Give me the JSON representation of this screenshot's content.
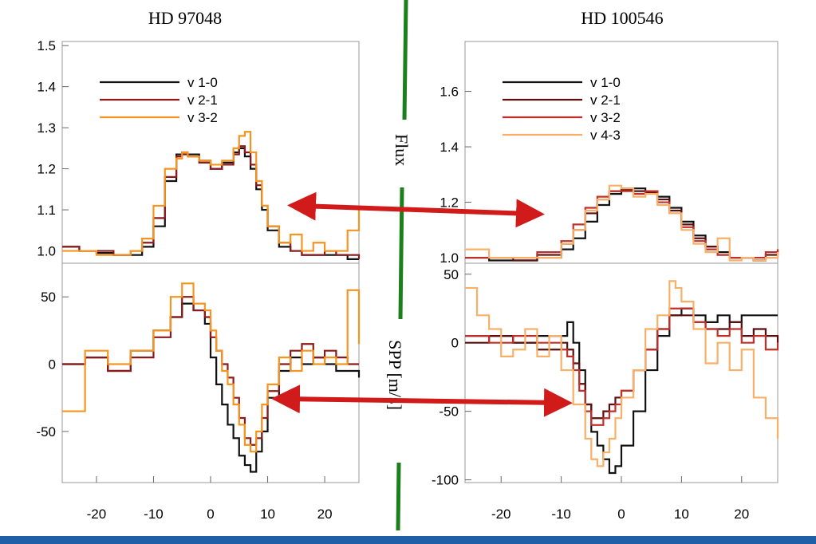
{
  "chart_data": [
    {
      "type": "line",
      "title": "HD 97048",
      "xlim": [
        -26,
        26
      ],
      "xticks": [
        -20,
        -10,
        0,
        10,
        20
      ],
      "panels": [
        {
          "id": "flux",
          "ylim": [
            0.97,
            1.51
          ],
          "yticks": [
            1.0,
            1.1,
            1.2,
            1.3,
            1.4,
            1.5
          ],
          "ytick_labels": [
            "1.0",
            "1.1",
            "1.2",
            "1.3",
            "1.4",
            "1.5"
          ],
          "series": [
            {
              "name": "v 1-0",
              "color": "#111111",
              "x": [
                -26,
                -23,
                -20,
                -17,
                -14,
                -12,
                -10,
                -8,
                -6,
                -5,
                -4,
                -2,
                0,
                2,
                4,
                5,
                6,
                7,
                8,
                9,
                10,
                12,
                14,
                16,
                18,
                20,
                22,
                24,
                26
              ],
              "y": [
                1.01,
                1.0,
                0.995,
                0.99,
                0.99,
                1.01,
                1.06,
                1.17,
                1.235,
                1.24,
                1.235,
                1.22,
                1.2,
                1.215,
                1.24,
                1.25,
                1.23,
                1.2,
                1.15,
                1.1,
                1.05,
                1.01,
                1.0,
                0.99,
                0.99,
                0.99,
                0.99,
                0.98,
                0.98
              ]
            },
            {
              "name": "v 2-1",
              "color": "#8b1a1a",
              "x": [
                -26,
                -23,
                -20,
                -17,
                -14,
                -12,
                -10,
                -8,
                -6,
                -5,
                -4,
                -2,
                0,
                2,
                4,
                5,
                6,
                7,
                8,
                9,
                10,
                12,
                14,
                16,
                18,
                20,
                22,
                24,
                26
              ],
              "y": [
                1.01,
                1.0,
                1.0,
                0.99,
                1.0,
                1.02,
                1.08,
                1.18,
                1.23,
                1.235,
                1.23,
                1.215,
                1.2,
                1.21,
                1.235,
                1.255,
                1.24,
                1.21,
                1.16,
                1.11,
                1.06,
                1.02,
                1.0,
                0.99,
                0.99,
                1.0,
                0.99,
                0.99,
                0.98
              ]
            },
            {
              "name": "v 3-2",
              "color": "#f5951f",
              "x": [
                -26,
                -23,
                -20,
                -17,
                -14,
                -12,
                -10,
                -8,
                -6,
                -5,
                -4,
                -2,
                0,
                2,
                4,
                5,
                6,
                7,
                8,
                9,
                10,
                12,
                14,
                16,
                18,
                20,
                22,
                24,
                26
              ],
              "y": [
                1.0,
                1.0,
                0.99,
                0.99,
                1.0,
                1.03,
                1.11,
                1.2,
                1.225,
                1.24,
                1.23,
                1.22,
                1.21,
                1.22,
                1.25,
                1.28,
                1.29,
                1.24,
                1.17,
                1.11,
                1.06,
                1.02,
                1.04,
                1.0,
                1.02,
                1.0,
                1.0,
                1.05,
                1.1
              ]
            }
          ]
        },
        {
          "id": "spp",
          "ylim": [
            -88,
            75
          ],
          "yticks": [
            -50,
            0,
            50
          ],
          "ytick_labels": [
            "-50",
            "0",
            "50"
          ],
          "series": [
            {
              "name": "v 1-0",
              "color": "#111111",
              "x": [
                -26,
                -22,
                -18,
                -14,
                -10,
                -7,
                -5,
                -3,
                -1,
                0,
                1,
                2,
                3,
                4,
                5,
                6,
                7,
                8,
                9,
                10,
                12,
                14,
                16,
                18,
                20,
                22,
                24,
                26
              ],
              "y": [
                0,
                5,
                -5,
                10,
                25,
                35,
                45,
                40,
                30,
                5,
                -15,
                -30,
                -45,
                -55,
                -68,
                -75,
                -80,
                -65,
                -50,
                -25,
                -5,
                5,
                0,
                5,
                0,
                -5,
                -5,
                -10
              ]
            },
            {
              "name": "v 2-1",
              "color": "#8b1a1a",
              "x": [
                -26,
                -22,
                -18,
                -14,
                -10,
                -7,
                -5,
                -3,
                -1,
                0,
                1,
                2,
                3,
                4,
                5,
                6,
                7,
                8,
                9,
                10,
                12,
                14,
                16,
                18,
                20,
                22,
                24,
                26
              ],
              "y": [
                0,
                5,
                -5,
                5,
                20,
                35,
                50,
                40,
                35,
                20,
                10,
                0,
                -10,
                -25,
                -40,
                -55,
                -60,
                -55,
                -40,
                -20,
                0,
                10,
                15,
                5,
                10,
                5,
                0,
                0
              ]
            },
            {
              "name": "v 3-2",
              "color": "#f5951f",
              "x": [
                -26,
                -22,
                -18,
                -14,
                -10,
                -7,
                -5,
                -3,
                -1,
                0,
                1,
                2,
                3,
                4,
                5,
                6,
                7,
                8,
                9,
                10,
                12,
                14,
                16,
                18,
                20,
                22,
                24,
                26
              ],
              "y": [
                -35,
                10,
                0,
                10,
                25,
                50,
                60,
                45,
                40,
                25,
                10,
                -5,
                -15,
                -30,
                -45,
                -60,
                -65,
                -50,
                -30,
                -15,
                5,
                -5,
                10,
                0,
                5,
                0,
                55,
                15
              ]
            }
          ]
        }
      ]
    },
    {
      "type": "line",
      "title": "HD 100546",
      "xlim": [
        -26,
        26
      ],
      "xticks": [
        -20,
        -10,
        0,
        10,
        20
      ],
      "panels": [
        {
          "id": "flux",
          "ylim": [
            0.98,
            1.78
          ],
          "yticks": [
            1.0,
            1.2,
            1.4,
            1.6
          ],
          "ytick_labels": [
            "1.0",
            "1.2",
            "1.4",
            "1.6"
          ],
          "series": [
            {
              "name": "v 1-0",
              "color": "#111111",
              "x": [
                -26,
                -22,
                -18,
                -14,
                -10,
                -8,
                -6,
                -4,
                -2,
                0,
                2,
                4,
                6,
                8,
                10,
                12,
                14,
                16,
                18,
                20,
                22,
                24,
                26
              ],
              "y": [
                1.0,
                0.99,
                0.99,
                1.0,
                1.03,
                1.07,
                1.13,
                1.19,
                1.23,
                1.25,
                1.25,
                1.24,
                1.22,
                1.18,
                1.13,
                1.08,
                1.04,
                1.02,
                1.0,
                1.0,
                0.99,
                1.0,
                1.0
              ]
            },
            {
              "name": "v 2-1",
              "color": "#5a0f0f",
              "x": [
                -26,
                -22,
                -18,
                -14,
                -10,
                -8,
                -6,
                -4,
                -2,
                0,
                2,
                4,
                6,
                8,
                10,
                12,
                14,
                16,
                18,
                20,
                22,
                24,
                26
              ],
              "y": [
                1.0,
                1.0,
                0.99,
                1.01,
                1.05,
                1.1,
                1.16,
                1.21,
                1.24,
                1.245,
                1.24,
                1.235,
                1.21,
                1.17,
                1.12,
                1.07,
                1.04,
                1.01,
                1.0,
                1.0,
                0.99,
                1.01,
                1.03
              ]
            },
            {
              "name": "v 3-2",
              "color": "#c0302a",
              "x": [
                -26,
                -22,
                -18,
                -14,
                -10,
                -8,
                -6,
                -4,
                -2,
                0,
                2,
                4,
                6,
                8,
                10,
                12,
                14,
                16,
                18,
                20,
                22,
                24,
                26
              ],
              "y": [
                1.0,
                1.0,
                1.0,
                1.02,
                1.06,
                1.12,
                1.18,
                1.22,
                1.24,
                1.24,
                1.23,
                1.24,
                1.2,
                1.16,
                1.11,
                1.06,
                1.03,
                1.01,
                1.0,
                1.0,
                1.0,
                1.02,
                1.03
              ]
            },
            {
              "name": "v 4-3",
              "color": "#f8b068",
              "x": [
                -26,
                -22,
                -18,
                -14,
                -10,
                -8,
                -6,
                -4,
                -2,
                0,
                2,
                4,
                6,
                8,
                10,
                12,
                14,
                16,
                18,
                20,
                22,
                24,
                26
              ],
              "y": [
                1.03,
                1.0,
                1.0,
                1.0,
                1.05,
                1.1,
                1.17,
                1.21,
                1.26,
                1.25,
                1.22,
                1.23,
                1.19,
                1.16,
                1.1,
                1.05,
                1.02,
                1.07,
                0.99,
                1.0,
                0.99,
                1.0,
                1.02
              ]
            }
          ]
        },
        {
          "id": "spp",
          "ylim": [
            -102,
            58
          ],
          "yticks": [
            -100,
            -50,
            0,
            50
          ],
          "ytick_labels": [
            "-100",
            "-50",
            "0",
            "50"
          ],
          "series": [
            {
              "name": "v 1-0",
              "color": "#111111",
              "x": [
                -26,
                -22,
                -18,
                -14,
                -10,
                -9,
                -8,
                -7,
                -6,
                -5,
                -4,
                -3,
                -2,
                -1,
                0,
                2,
                4,
                6,
                8,
                10,
                12,
                14,
                16,
                18,
                20,
                22,
                24,
                26
              ],
              "y": [
                5,
                5,
                0,
                5,
                5,
                15,
                0,
                -20,
                -45,
                -65,
                -75,
                -85,
                -95,
                -90,
                -75,
                -50,
                -20,
                5,
                20,
                25,
                20,
                15,
                20,
                15,
                20,
                20,
                20,
                20
              ]
            },
            {
              "name": "v 2-1",
              "color": "#5a0f0f",
              "x": [
                -26,
                -22,
                -18,
                -14,
                -10,
                -9,
                -8,
                -7,
                -6,
                -5,
                -4,
                -3,
                -2,
                -1,
                0,
                2,
                4,
                6,
                8,
                10,
                12,
                14,
                16,
                18,
                20,
                22,
                24,
                26
              ],
              "y": [
                0,
                5,
                0,
                -5,
                0,
                -5,
                -15,
                -30,
                -45,
                -55,
                -55,
                -50,
                -45,
                -40,
                -35,
                -20,
                -5,
                10,
                20,
                20,
                15,
                10,
                10,
                15,
                5,
                10,
                5,
                0
              ]
            },
            {
              "name": "v 3-2",
              "color": "#c0302a",
              "x": [
                -26,
                -22,
                -18,
                -14,
                -10,
                -9,
                -8,
                -7,
                -6,
                -5,
                -4,
                -3,
                -2,
                -1,
                0,
                2,
                4,
                6,
                8,
                10,
                12,
                14,
                16,
                18,
                20,
                22,
                24,
                26
              ],
              "y": [
                5,
                0,
                5,
                0,
                -5,
                -10,
                -20,
                -35,
                -50,
                -60,
                -60,
                -55,
                -50,
                -45,
                -35,
                -20,
                -5,
                10,
                25,
                25,
                15,
                10,
                5,
                10,
                0,
                5,
                -5,
                0
              ]
            },
            {
              "name": "v 4-3",
              "color": "#f8b068",
              "x": [
                -26,
                -24,
                -22,
                -20,
                -18,
                -16,
                -14,
                -12,
                -10,
                -8,
                -6,
                -5,
                -4,
                -3,
                -2,
                -1,
                0,
                2,
                4,
                6,
                8,
                9,
                10,
                12,
                14,
                16,
                18,
                20,
                22,
                24,
                26
              ],
              "y": [
                40,
                20,
                10,
                -10,
                -5,
                10,
                -10,
                5,
                -20,
                -45,
                -70,
                -85,
                -90,
                -80,
                -70,
                -55,
                -40,
                -20,
                10,
                20,
                45,
                40,
                30,
                10,
                -15,
                0,
                -20,
                -5,
                -40,
                -55,
                -70
              ]
            }
          ]
        }
      ]
    }
  ],
  "annotations": {
    "flux_label": "Flux",
    "spp_label": "SPP [m/s]",
    "divider_color": "#1b7f1b",
    "arrow_color": "#d11a1a",
    "bar_color": "#1f5fa8"
  }
}
